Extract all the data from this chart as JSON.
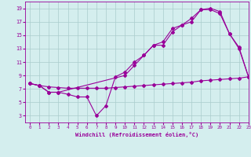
{
  "line1_x": [
    0,
    1,
    2,
    3,
    4,
    5,
    6,
    7,
    8,
    9,
    10,
    11,
    12,
    13,
    14,
    15,
    16,
    17,
    18,
    19,
    20,
    21,
    22,
    23
  ],
  "line1_y": [
    7.8,
    7.5,
    6.5,
    6.5,
    6.2,
    5.8,
    5.8,
    3.0,
    4.5,
    8.8,
    9.5,
    11.0,
    12.0,
    13.5,
    13.5,
    15.5,
    16.5,
    17.0,
    18.8,
    18.8,
    18.2,
    15.2,
    13.2,
    8.8
  ],
  "line2_x": [
    0,
    1,
    2,
    3,
    10,
    11,
    12,
    13,
    14,
    15,
    16,
    17,
    18,
    19,
    20,
    21,
    22,
    23
  ],
  "line2_y": [
    7.8,
    7.5,
    6.5,
    6.5,
    9.0,
    10.5,
    12.0,
    13.5,
    14.0,
    16.0,
    16.5,
    17.5,
    18.8,
    19.0,
    18.5,
    15.2,
    13.0,
    8.8
  ],
  "line3_x": [
    0,
    1,
    2,
    3,
    4,
    5,
    6,
    7,
    8,
    9,
    10,
    11,
    12,
    13,
    14,
    15,
    16,
    17,
    18,
    19,
    20,
    21,
    22,
    23
  ],
  "line3_y": [
    7.8,
    7.5,
    7.3,
    7.2,
    7.1,
    7.1,
    7.1,
    7.1,
    7.1,
    7.2,
    7.3,
    7.4,
    7.5,
    7.6,
    7.7,
    7.8,
    7.9,
    8.0,
    8.2,
    8.3,
    8.4,
    8.5,
    8.6,
    8.8
  ],
  "line_color": "#990099",
  "bg_color": "#d4eeee",
  "grid_color": "#aacccc",
  "xlabel": "Windchill (Refroidissement éolien,°C)",
  "ylim": [
    2,
    20
  ],
  "xlim": [
    -0.5,
    23
  ],
  "yticks": [
    3,
    5,
    7,
    9,
    11,
    13,
    15,
    17,
    19
  ],
  "xticks": [
    0,
    1,
    2,
    3,
    4,
    5,
    6,
    7,
    8,
    9,
    10,
    11,
    12,
    13,
    14,
    15,
    16,
    17,
    18,
    19,
    20,
    21,
    22,
    23
  ],
  "marker": "D",
  "markersize": 2.0,
  "linewidth": 0.8
}
